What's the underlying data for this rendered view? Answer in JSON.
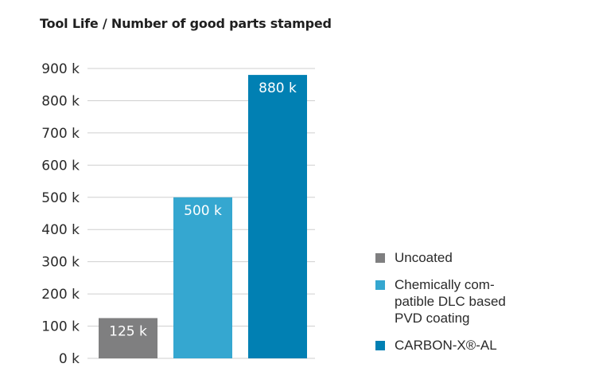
{
  "chart_data": {
    "type": "bar",
    "title": "Tool Life / Number of good parts stamped",
    "categories": [
      "Uncoated",
      "Chemically com-\npatible DLC based\nPVD coating",
      "CARBON-X®-AL"
    ],
    "values": [
      125,
      500,
      880
    ],
    "data_labels": [
      "125 k",
      "500 k",
      "880 k"
    ],
    "ylim": [
      0,
      900
    ],
    "yticks": [
      0,
      100,
      200,
      300,
      400,
      500,
      600,
      700,
      800,
      900
    ],
    "ytick_labels": [
      "0 k",
      "100 k",
      "200 k",
      "300 k",
      "400 k",
      "500 k",
      "600 k",
      "700 k",
      "800 k",
      "900 k"
    ],
    "grid": true,
    "legend_position": "right",
    "colors": [
      "#7f7f80",
      "#35a7d0",
      "#0180b3"
    ]
  }
}
